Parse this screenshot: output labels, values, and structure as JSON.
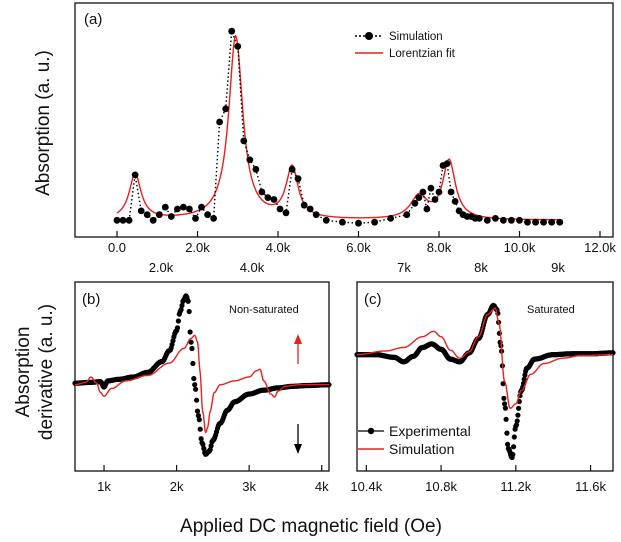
{
  "figure": {
    "x_label_shared": "Applied DC magnetic field (Oe)",
    "top_secondary_ticks": [
      "2.0k",
      "4.0k",
      "7k",
      "8k",
      "9k"
    ]
  },
  "chart_data": [
    {
      "id": "a",
      "panel_label": "(a)",
      "type": "line",
      "title": "",
      "xlabel": "",
      "ylabel": "Absorption (a. u.)",
      "xlim": [
        0,
        12000
      ],
      "x_ticks": [
        0,
        2000,
        4000,
        6000,
        8000,
        10000,
        12000
      ],
      "x_tick_labels": [
        "0.0",
        "2.0k",
        "4.0k",
        "6.0k",
        "8.0k",
        "10.0k",
        "12.0k"
      ],
      "y_ticks_shown": false,
      "ylim": [
        0,
        1.1
      ],
      "legend_position": "top-right",
      "series": [
        {
          "name": "Simulation",
          "style": "dotted-line-with-dots",
          "color": "#000000",
          "x": [
            0,
            150,
            300,
            450,
            600,
            750,
            900,
            1050,
            1200,
            1350,
            1500,
            1650,
            1800,
            1950,
            2100,
            2250,
            2400,
            2550,
            2700,
            2850,
            3000,
            3150,
            3300,
            3450,
            3600,
            3750,
            3900,
            4050,
            4200,
            4350,
            4500,
            4650,
            4800,
            4950,
            5200,
            5600,
            6000,
            6400,
            6800,
            7200,
            7400,
            7500,
            7600,
            7700,
            7800,
            7900,
            8000,
            8100,
            8200,
            8300,
            8400,
            8500,
            8600,
            8700,
            8800,
            8900,
            9000,
            9200,
            9400,
            9600,
            9800,
            10000,
            10200,
            10400,
            10600,
            10800,
            11000
          ],
          "y": [
            0.03,
            0.03,
            0.03,
            0.27,
            0.08,
            0.06,
            0.03,
            0.06,
            0.1,
            0.05,
            0.09,
            0.1,
            0.09,
            0.04,
            0.1,
            0.06,
            0.04,
            0.55,
            0.62,
            1.03,
            0.95,
            0.45,
            0.35,
            0.3,
            0.18,
            0.15,
            0.14,
            0.09,
            0.07,
            0.3,
            0.25,
            0.11,
            0.09,
            0.06,
            0.03,
            0.02,
            0.015,
            0.02,
            0.04,
            0.06,
            0.12,
            0.15,
            0.18,
            0.09,
            0.2,
            0.14,
            0.18,
            0.32,
            0.33,
            0.18,
            0.13,
            0.08,
            0.06,
            0.05,
            0.05,
            0.04,
            0.04,
            0.03,
            0.04,
            0.03,
            0.03,
            0.03,
            0.02,
            0.02,
            0.02,
            0.02,
            0.02
          ]
        },
        {
          "name": "Lorentzian fit",
          "style": "line",
          "color": "#e8201e",
          "lorentzian_peaks": [
            {
              "center": 450,
              "height": 0.27,
              "hwhm": 180
            },
            {
              "center": 2950,
              "height": 1.0,
              "hwhm": 210
            },
            {
              "center": 4350,
              "height": 0.3,
              "hwhm": 180
            },
            {
              "center": 7500,
              "height": 0.15,
              "hwhm": 250
            },
            {
              "center": 8250,
              "height": 0.34,
              "hwhm": 190
            }
          ],
          "baseline": 0.03
        }
      ]
    },
    {
      "id": "b",
      "panel_label": "(b)",
      "annotation": "Non-saturated",
      "type": "line",
      "title": "",
      "xlabel": "",
      "ylabel": "Absorption\nderivative (a. u.)",
      "xlim": [
        600,
        4100
      ],
      "x_ticks": [
        1000,
        2000,
        3000,
        4000
      ],
      "x_tick_labels": [
        "1k",
        "2k",
        "3k",
        "4k"
      ],
      "y_ticks_shown": false,
      "ylim": [
        -1.0,
        1.2
      ],
      "arrows": [
        {
          "direction": "up",
          "color": "#e8201e"
        },
        {
          "direction": "down",
          "color": "#000000"
        }
      ],
      "series": [
        {
          "name": "Experimental",
          "style": "dense-dots",
          "color": "#000000",
          "x": [
            600,
            800,
            950,
            1000,
            1050,
            1200,
            1400,
            1600,
            1800,
            1900,
            2000,
            2050,
            2100,
            2130,
            2160,
            2200,
            2250,
            2300,
            2350,
            2400,
            2450,
            2500,
            2600,
            2700,
            2800,
            3000,
            3200,
            3400,
            3600,
            3800,
            4100
          ],
          "y": [
            0.02,
            0.03,
            0.04,
            -0.03,
            0.05,
            0.07,
            0.1,
            0.16,
            0.3,
            0.44,
            0.7,
            0.95,
            1.1,
            1.15,
            1.08,
            0.55,
            0.0,
            -0.4,
            -0.75,
            -0.9,
            -0.86,
            -0.72,
            -0.5,
            -0.33,
            -0.22,
            -0.12,
            -0.07,
            -0.04,
            -0.02,
            -0.01,
            0.0
          ]
        },
        {
          "name": "Simulation",
          "style": "line",
          "color": "#e8201e",
          "x": [
            600,
            750,
            820,
            900,
            950,
            1000,
            1100,
            1300,
            1600,
            1900,
            2100,
            2200,
            2250,
            2290,
            2320,
            2360,
            2400,
            2430,
            2460,
            2520,
            2600,
            2800,
            3000,
            3100,
            3150,
            3200,
            3300,
            3350,
            3400,
            3500,
            3700,
            4100
          ],
          "y": [
            0.0,
            0.03,
            0.1,
            0.02,
            -0.1,
            -0.15,
            -0.05,
            0.05,
            0.12,
            0.28,
            0.47,
            0.6,
            0.64,
            0.55,
            0.2,
            -0.35,
            -0.62,
            -0.55,
            -0.35,
            -0.1,
            0.0,
            0.05,
            0.1,
            0.18,
            0.2,
            0.05,
            -0.12,
            -0.16,
            -0.08,
            -0.02,
            0.0,
            0.0
          ]
        }
      ]
    },
    {
      "id": "c",
      "panel_label": "(c)",
      "annotation": "Saturated",
      "type": "line",
      "title": "",
      "xlabel": "",
      "ylabel": "",
      "xlim": [
        10350,
        11720
      ],
      "x_ticks": [
        10400,
        10800,
        11200,
        11600
      ],
      "x_tick_labels": [
        "10.4k",
        "10.8k",
        "11.2k",
        "11.6k"
      ],
      "secondary_top_ticks": [
        7000,
        8000,
        9000
      ],
      "y_ticks_shown": false,
      "ylim": [
        -1.2,
        0.7
      ],
      "legend_position": "bottom-left",
      "series": [
        {
          "name": "Experimental",
          "style": "dense-dots",
          "color": "#000000",
          "x": [
            10350,
            10450,
            10550,
            10600,
            10650,
            10700,
            10750,
            10800,
            10850,
            10900,
            10950,
            11000,
            11050,
            11080,
            11100,
            11120,
            11140,
            11160,
            11180,
            11200,
            11230,
            11260,
            11300,
            11400,
            11500,
            11600,
            11720
          ],
          "y": [
            0.0,
            0.0,
            -0.03,
            -0.08,
            -0.02,
            0.08,
            0.12,
            0.06,
            -0.05,
            -0.08,
            0.02,
            0.18,
            0.45,
            0.55,
            0.5,
            0.1,
            -0.55,
            -1.05,
            -1.15,
            -0.8,
            -0.4,
            -0.15,
            -0.05,
            0.0,
            0.01,
            0.01,
            0.02
          ]
        },
        {
          "name": "Simulation",
          "style": "line",
          "color": "#e8201e",
          "x": [
            10350,
            10500,
            10600,
            10700,
            10760,
            10800,
            10850,
            10900,
            10950,
            11000,
            11050,
            11090,
            11110,
            11140,
            11170,
            11200,
            11230,
            11280,
            11350,
            11450,
            11550,
            11720
          ],
          "y": [
            0.0,
            0.04,
            0.08,
            0.2,
            0.26,
            0.2,
            0.05,
            -0.04,
            0.03,
            0.2,
            0.45,
            0.52,
            0.35,
            -0.3,
            -0.6,
            -0.55,
            -0.4,
            -0.22,
            -0.1,
            -0.04,
            -0.01,
            0.0
          ]
        }
      ]
    }
  ]
}
